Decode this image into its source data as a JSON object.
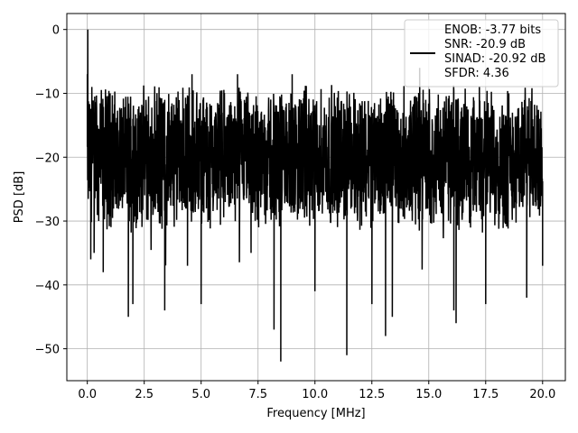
{
  "chart_data": {
    "type": "line",
    "title": "",
    "xlabel": "Frequency [MHz]",
    "ylabel": "PSD [dB]",
    "xlim": [
      -0.9,
      21.0
    ],
    "ylim": [
      -55.0,
      2.5
    ],
    "xticks": [
      0.0,
      2.5,
      5.0,
      7.5,
      10.0,
      12.5,
      15.0,
      17.5,
      20.0
    ],
    "xtick_labels": [
      "0.0",
      "2.5",
      "5.0",
      "7.5",
      "10.0",
      "12.5",
      "15.0",
      "17.5",
      "20.0"
    ],
    "yticks": [
      0,
      -10,
      -20,
      -30,
      -40,
      -50
    ],
    "ytick_labels": [
      "0",
      "−10",
      "−20",
      "−30",
      "−40",
      "−50"
    ],
    "grid": true,
    "legend_position": "top-right",
    "legend": [
      "ENOB: -3.77 bits",
      "SNR: -20.9 dB",
      "SINAD: -20.92 dB",
      "SFDR: 4.36"
    ],
    "line_color": "#000000",
    "series": [
      {
        "values_description_only": false,
        "x_range": [
          0.0,
          20.0
        ],
        "points": [
          [
            0.0,
            -7
          ],
          [
            0.02,
            0
          ],
          [
            0.04,
            -12
          ],
          [
            0.07,
            -22
          ],
          [
            0.1,
            -16
          ],
          [
            0.15,
            -36
          ],
          [
            0.2,
            -9
          ],
          [
            0.3,
            -35
          ],
          [
            0.4,
            -11
          ],
          [
            0.5,
            -30
          ],
          [
            0.7,
            -38
          ],
          [
            1.0,
            -10
          ],
          [
            1.3,
            -28
          ],
          [
            1.8,
            -45
          ],
          [
            2.0,
            -14
          ],
          [
            2.0,
            -43
          ],
          [
            3.4,
            -11
          ],
          [
            3.4,
            -44
          ],
          [
            4.4,
            -37
          ],
          [
            4.6,
            -7
          ],
          [
            5.0,
            -43
          ],
          [
            6.6,
            -7
          ],
          [
            8.2,
            -47
          ],
          [
            8.5,
            -52
          ],
          [
            9.0,
            -7
          ],
          [
            10.0,
            -41
          ],
          [
            11.4,
            -51
          ],
          [
            12.5,
            -43
          ],
          [
            13.1,
            -48
          ],
          [
            13.4,
            -45
          ],
          [
            14.6,
            -6
          ],
          [
            16.1,
            -44
          ],
          [
            16.2,
            -46
          ],
          [
            17.5,
            -43
          ],
          [
            19.3,
            -42
          ],
          [
            20.0,
            -37
          ]
        ],
        "noise_mean": -20,
        "noise_spread": 9
      }
    ]
  }
}
